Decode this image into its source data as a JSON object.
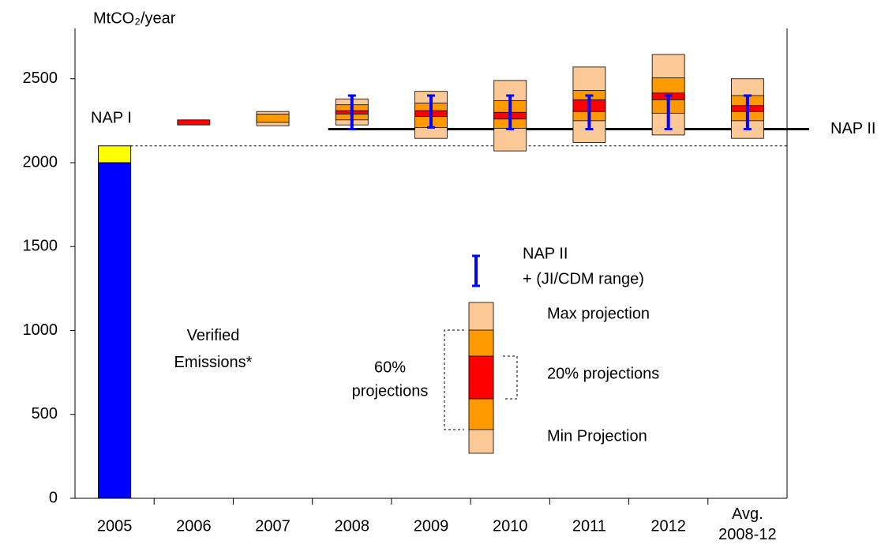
{
  "chart_data": {
    "type": "range",
    "y_label": "MtCO₂/year",
    "categories": [
      "2005",
      "2006",
      "2007",
      "2008",
      "2009",
      "2010",
      "2011",
      "2012",
      "Avg. 2008-12"
    ],
    "ylim": [
      0,
      2800
    ],
    "yticks": [
      0,
      500,
      1000,
      1500,
      2000,
      2500
    ],
    "verified": {
      "name": "Verified Emissions*",
      "color": "#0000ff",
      "values": [
        2000,
        null,
        null,
        null,
        null,
        null,
        null,
        null,
        null
      ]
    },
    "verified_top": {
      "color": "#ffff00",
      "values": [
        100,
        null,
        null,
        null,
        null,
        null,
        null,
        null,
        null
      ]
    },
    "projections": {
      "colors": {
        "outer": "#fcc895",
        "mid": "#ff9900",
        "inner": "#ff0000"
      },
      "min": [
        null,
        null,
        2220,
        2225,
        2145,
        2070,
        2120,
        2165,
        2145
      ],
      "low60": [
        null,
        null,
        2240,
        2255,
        2210,
        2205,
        2250,
        2295,
        2250
      ],
      "low20": [
        null,
        2225,
        null,
        2290,
        2275,
        2260,
        2305,
        2375,
        2305
      ],
      "high20": [
        null,
        2255,
        null,
        2310,
        2310,
        2300,
        2375,
        2415,
        2340
      ],
      "high60": [
        null,
        null,
        2290,
        2345,
        2355,
        2370,
        2430,
        2505,
        2400
      ],
      "max": [
        null,
        null,
        2305,
        2380,
        2425,
        2490,
        2570,
        2645,
        2500
      ]
    },
    "nap2_range": {
      "color": "#0000ff",
      "low": [
        null,
        null,
        null,
        2200,
        2210,
        2200,
        2200,
        2200,
        2200
      ],
      "high": [
        null,
        null,
        null,
        2400,
        2400,
        2400,
        2400,
        2400,
        2400
      ]
    },
    "nap2": {
      "label": "NAP II",
      "value": 2200
    },
    "nap1_label": "NAP I",
    "dashed_line": 2100,
    "key": {
      "range_title": "NAP II",
      "range_sub": "+ (JI/CDM range)",
      "max": "Max projection",
      "twenty": "20% projections",
      "min": "Min Projection",
      "sixty_a": "60%",
      "sixty_b": "projections"
    }
  }
}
